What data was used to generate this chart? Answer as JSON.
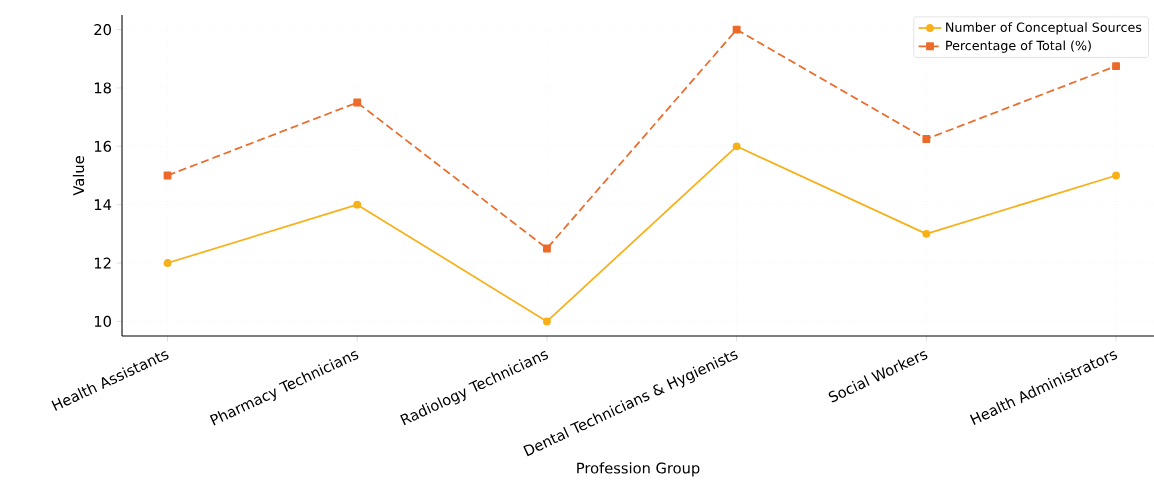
{
  "chart_data": {
    "type": "line",
    "xlabel": "Profession Group",
    "ylabel": "Value",
    "categories": [
      "Health Assistants",
      "Pharmacy Technicians",
      "Radiology Technicians",
      "Dental Technicians & Hygienists",
      "Social Workers",
      "Health Administrators"
    ],
    "series": [
      {
        "name": "Number of Conceptual Sources",
        "color": "#f8b019",
        "marker": "circle",
        "line_style": "solid",
        "values": [
          12,
          14,
          10,
          16,
          13,
          15
        ]
      },
      {
        "name": "Percentage of Total (%)",
        "color": "#ec6a2a",
        "marker": "square",
        "line_style": "dashed",
        "values": [
          15,
          17.5,
          12.5,
          20,
          16.25,
          18.75
        ]
      }
    ],
    "ylim": [
      9.5,
      20.5
    ],
    "yticks": [
      10,
      12,
      14,
      16,
      18,
      20
    ],
    "grid": true,
    "legend": "top right"
  }
}
